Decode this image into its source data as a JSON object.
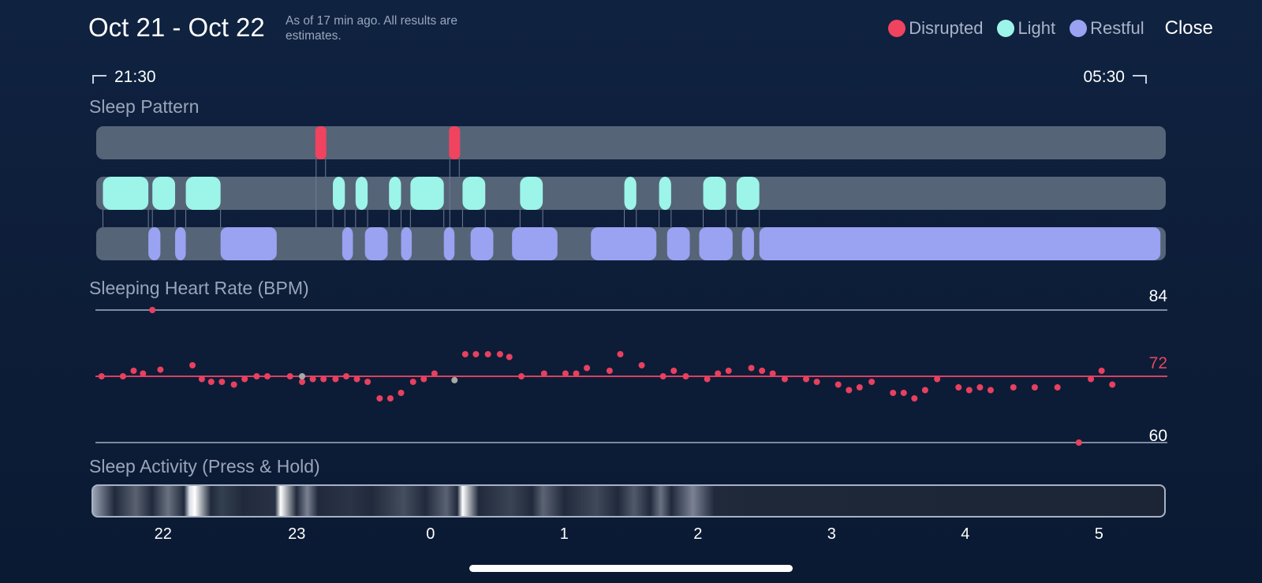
{
  "header": {
    "date_range": "Oct 21 - Oct 22",
    "subtitle": "As of 17 min ago. All results are estimates.",
    "close_label": "Close"
  },
  "legend": [
    {
      "label": "Disrupted",
      "color": "#f0435f"
    },
    {
      "label": "Light",
      "color": "#9cf5e8"
    },
    {
      "label": "Restful",
      "color": "#9aa2f2"
    }
  ],
  "time_range": {
    "start": "21:30",
    "end": "05:30"
  },
  "sleep_pattern": {
    "title": "Sleep Pattern",
    "track_color": "#566478",
    "disrupted_times": [
      23.18,
      0.18
    ],
    "light_intervals": [
      [
        21.55,
        21.89
      ],
      [
        21.92,
        22.09
      ],
      [
        22.17,
        22.43
      ],
      [
        23.27,
        23.36
      ],
      [
        23.44,
        23.53
      ],
      [
        23.69,
        23.78
      ],
      [
        23.85,
        0.1
      ],
      [
        0.24,
        0.41
      ],
      [
        0.67,
        0.84
      ],
      [
        1.45,
        1.54
      ],
      [
        1.71,
        1.8
      ],
      [
        2.04,
        2.21
      ],
      [
        2.29,
        2.46
      ]
    ],
    "restful_intervals": [
      [
        21.89,
        21.98
      ],
      [
        22.09,
        22.17
      ],
      [
        22.43,
        22.85
      ],
      [
        23.34,
        23.42
      ],
      [
        23.51,
        23.68
      ],
      [
        23.78,
        23.86
      ],
      [
        0.1,
        0.18
      ],
      [
        0.3,
        0.47
      ],
      [
        0.61,
        0.95
      ],
      [
        1.2,
        1.69
      ],
      [
        1.77,
        1.94
      ],
      [
        2.01,
        2.26
      ],
      [
        2.33,
        2.42
      ],
      [
        2.46,
        5.46
      ]
    ]
  },
  "heart_rate": {
    "title": "Sleeping Heart Rate (BPM)",
    "max_label": "84",
    "avg_label": "72",
    "min_label": "60",
    "y_range": [
      60,
      84
    ],
    "avg": 72,
    "points": [
      [
        21.54,
        72
      ],
      [
        21.7,
        72
      ],
      [
        21.78,
        73
      ],
      [
        21.85,
        72.5
      ],
      [
        21.98,
        73.2
      ],
      [
        22.22,
        74
      ],
      [
        22.29,
        71.5
      ],
      [
        22.36,
        71
      ],
      [
        22.44,
        71
      ],
      [
        22.53,
        70.5
      ],
      [
        22.61,
        71.5
      ],
      [
        22.7,
        72
      ],
      [
        22.78,
        72
      ],
      [
        22.95,
        72
      ],
      [
        23.04,
        71
      ],
      [
        23.12,
        71.5
      ],
      [
        23.2,
        71.5
      ],
      [
        23.29,
        71.5
      ],
      [
        23.37,
        72
      ],
      [
        23.45,
        71.5
      ],
      [
        23.53,
        71
      ],
      [
        23.62,
        68
      ],
      [
        23.7,
        68
      ],
      [
        23.78,
        69
      ],
      [
        23.87,
        71
      ],
      [
        23.95,
        71.5
      ],
      [
        0.03,
        72.5
      ],
      [
        0.26,
        76
      ],
      [
        0.34,
        76
      ],
      [
        0.43,
        76
      ],
      [
        0.52,
        76
      ],
      [
        0.59,
        75.5
      ],
      [
        0.68,
        72
      ],
      [
        0.85,
        72.5
      ],
      [
        1.01,
        72.5
      ],
      [
        1.09,
        72.5
      ],
      [
        1.17,
        73.5
      ],
      [
        1.34,
        73
      ],
      [
        1.42,
        76
      ],
      [
        1.58,
        74
      ],
      [
        1.74,
        72
      ],
      [
        1.82,
        73
      ],
      [
        1.91,
        72
      ],
      [
        2.07,
        71.5
      ],
      [
        2.15,
        72.5
      ],
      [
        2.23,
        73
      ],
      [
        2.4,
        73.5
      ],
      [
        2.48,
        73
      ],
      [
        2.56,
        72.5
      ],
      [
        2.65,
        71.5
      ],
      [
        2.81,
        71.5
      ],
      [
        2.89,
        71
      ],
      [
        3.05,
        70.5
      ],
      [
        3.13,
        69.5
      ],
      [
        3.21,
        70
      ],
      [
        3.3,
        71
      ],
      [
        3.46,
        69
      ],
      [
        3.54,
        69
      ],
      [
        3.62,
        68
      ],
      [
        3.7,
        69.5
      ],
      [
        3.79,
        71.5
      ],
      [
        3.95,
        70
      ],
      [
        4.03,
        69.5
      ],
      [
        4.11,
        70
      ],
      [
        4.19,
        69.5
      ],
      [
        4.36,
        70
      ],
      [
        4.52,
        70
      ],
      [
        4.69,
        70
      ],
      [
        4.85,
        60
      ],
      [
        4.94,
        71.5
      ],
      [
        5.02,
        73
      ],
      [
        5.1,
        70.5
      ]
    ],
    "outlier_points": [
      [
        21.92,
        84
      ]
    ],
    "gray_points": [
      [
        23.04,
        72
      ],
      [
        0.18,
        71.3
      ]
    ]
  },
  "sleep_activity": {
    "title": "Sleep Activity (Press & Hold)"
  },
  "x_axis": {
    "ticks": [
      "22",
      "23",
      "0",
      "1",
      "2",
      "3",
      "4",
      "5"
    ]
  }
}
